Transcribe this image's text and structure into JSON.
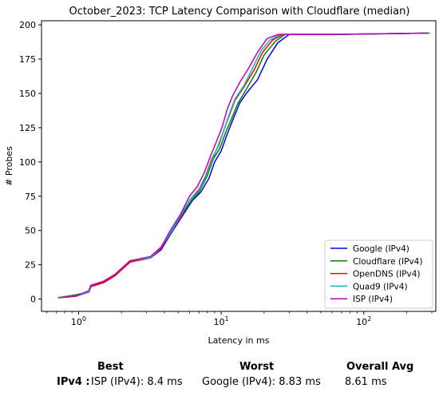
{
  "chart_data": {
    "type": "line",
    "title": "October_2023: TCP Latency Comparison with Cloudflare (median)",
    "xlabel": "Latency in ms",
    "ylabel": "# Probes",
    "xscale": "log",
    "xlim": [
      0.55,
      320
    ],
    "ylim": [
      -9,
      203
    ],
    "xticks": [
      1,
      10,
      100
    ],
    "xtick_labels": [
      "10^0",
      "10^1",
      "10^2"
    ],
    "yticks": [
      0,
      25,
      50,
      75,
      100,
      125,
      150,
      175,
      200
    ],
    "grid": false,
    "legend_position": "lower-right",
    "series": [
      {
        "name": "Google (IPv4)",
        "color": "#0000ff",
        "points": [
          [
            0.72,
            1
          ],
          [
            0.95,
            2
          ],
          [
            1.18,
            5
          ],
          [
            1.22,
            9
          ],
          [
            1.5,
            12
          ],
          [
            1.8,
            17
          ],
          [
            2.3,
            27
          ],
          [
            3.2,
            30
          ],
          [
            3.8,
            36
          ],
          [
            4.4,
            47
          ],
          [
            5.3,
            60
          ],
          [
            6.3,
            72
          ],
          [
            7.2,
            78
          ],
          [
            8.2,
            88
          ],
          [
            9.0,
            100
          ],
          [
            10.0,
            108
          ],
          [
            11.0,
            120
          ],
          [
            12.0,
            130
          ],
          [
            13.5,
            143
          ],
          [
            15.0,
            150
          ],
          [
            18.0,
            160
          ],
          [
            21.0,
            175
          ],
          [
            25.0,
            187
          ],
          [
            30.0,
            193
          ],
          [
            60.0,
            193
          ],
          [
            280.0,
            194
          ]
        ]
      },
      {
        "name": "Cloudflare (IPv4)",
        "color": "#008000",
        "points": [
          [
            0.72,
            1
          ],
          [
            0.95,
            3
          ],
          [
            1.18,
            5
          ],
          [
            1.22,
            10
          ],
          [
            1.5,
            12
          ],
          [
            1.8,
            17
          ],
          [
            2.3,
            27
          ],
          [
            3.2,
            30
          ],
          [
            3.8,
            38
          ],
          [
            4.4,
            48
          ],
          [
            5.2,
            60
          ],
          [
            6.2,
            72
          ],
          [
            7.0,
            78
          ],
          [
            8.0,
            90
          ],
          [
            8.8,
            102
          ],
          [
            9.8,
            110
          ],
          [
            10.8,
            122
          ],
          [
            12.0,
            133
          ],
          [
            13.0,
            142
          ],
          [
            15.0,
            153
          ],
          [
            17.5,
            165
          ],
          [
            20.0,
            178
          ],
          [
            24.0,
            188
          ],
          [
            28.0,
            193
          ],
          [
            60.0,
            193
          ],
          [
            290.0,
            194
          ]
        ]
      },
      {
        "name": "OpenDNS (IPv4)",
        "color": "#ff0000",
        "points": [
          [
            0.72,
            1
          ],
          [
            0.95,
            2
          ],
          [
            1.18,
            5
          ],
          [
            1.22,
            9
          ],
          [
            1.5,
            12
          ],
          [
            1.8,
            17
          ],
          [
            2.3,
            27
          ],
          [
            3.2,
            30
          ],
          [
            3.8,
            37
          ],
          [
            4.4,
            48
          ],
          [
            5.2,
            60
          ],
          [
            6.0,
            72
          ],
          [
            7.0,
            80
          ],
          [
            7.8,
            90
          ],
          [
            8.6,
            102
          ],
          [
            9.6,
            112
          ],
          [
            10.5,
            124
          ],
          [
            11.5,
            135
          ],
          [
            12.5,
            145
          ],
          [
            14.5,
            155
          ],
          [
            17.0,
            167
          ],
          [
            19.5,
            180
          ],
          [
            23.0,
            189
          ],
          [
            27.0,
            193
          ],
          [
            60.0,
            193
          ],
          [
            280.0,
            194
          ]
        ]
      },
      {
        "name": "Quad9 (IPv4)",
        "color": "#00bfbf",
        "points": [
          [
            0.72,
            1
          ],
          [
            0.95,
            2
          ],
          [
            1.18,
            5
          ],
          [
            1.22,
            10
          ],
          [
            1.5,
            13
          ],
          [
            1.8,
            18
          ],
          [
            2.3,
            28
          ],
          [
            3.2,
            30
          ],
          [
            3.8,
            38
          ],
          [
            4.4,
            48
          ],
          [
            5.2,
            61
          ],
          [
            6.0,
            72
          ],
          [
            7.0,
            79
          ],
          [
            8.0,
            92
          ],
          [
            8.8,
            103
          ],
          [
            9.6,
            113
          ],
          [
            10.5,
            124
          ],
          [
            11.5,
            136
          ],
          [
            12.5,
            146
          ],
          [
            14.5,
            156
          ],
          [
            16.5,
            168
          ],
          [
            19.0,
            181
          ],
          [
            22.0,
            189
          ],
          [
            26.0,
            193
          ],
          [
            60.0,
            193
          ],
          [
            280.0,
            194
          ]
        ]
      },
      {
        "name": "ISP (IPv4)",
        "color": "#bf00bf",
        "points": [
          [
            0.72,
            1
          ],
          [
            0.95,
            2
          ],
          [
            1.18,
            6
          ],
          [
            1.22,
            10
          ],
          [
            1.5,
            13
          ],
          [
            1.8,
            18
          ],
          [
            2.3,
            28
          ],
          [
            3.2,
            31
          ],
          [
            3.8,
            38
          ],
          [
            4.4,
            50
          ],
          [
            5.2,
            62
          ],
          [
            6.0,
            75
          ],
          [
            6.8,
            82
          ],
          [
            7.6,
            92
          ],
          [
            8.4,
            104
          ],
          [
            9.2,
            114
          ],
          [
            10.2,
            126
          ],
          [
            11.0,
            138
          ],
          [
            12.0,
            148
          ],
          [
            13.5,
            158
          ],
          [
            15.5,
            168
          ],
          [
            18.0,
            180
          ],
          [
            21.0,
            190
          ],
          [
            25.0,
            193
          ],
          [
            60.0,
            193
          ],
          [
            280.0,
            194
          ]
        ]
      }
    ]
  },
  "summary": {
    "best_label": "Best",
    "worst_label": "Worst",
    "avg_label": "Overall Avg",
    "row_label": "IPv4 :",
    "best_value": "ISP (IPv4): 8.4 ms",
    "worst_value": "Google (IPv4): 8.83 ms",
    "avg_value": "8.61 ms"
  }
}
